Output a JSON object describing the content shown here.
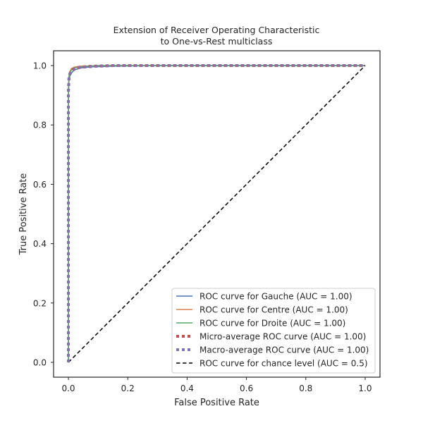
{
  "chart_data": {
    "type": "line",
    "title": "Extension of Receiver Operating Characteristic\nto One-vs-Rest multiclass",
    "xlabel": "False Positive Rate",
    "ylabel": "True Positive Rate",
    "xlim": [
      -0.05,
      1.05
    ],
    "ylim": [
      -0.05,
      1.05
    ],
    "xticks": [
      0.0,
      0.2,
      0.4,
      0.6,
      0.8,
      1.0
    ],
    "yticks": [
      0.0,
      0.2,
      0.4,
      0.6,
      0.8,
      1.0
    ],
    "xtick_labels": [
      "0.0",
      "0.2",
      "0.4",
      "0.6",
      "0.8",
      "1.0"
    ],
    "ytick_labels": [
      "0.0",
      "0.2",
      "0.4",
      "0.6",
      "0.8",
      "1.0"
    ],
    "grid": false,
    "legend_position": "lower-right",
    "series": [
      {
        "name": "ROC curve for Gauche (AUC = 1.00)",
        "color": "#4c72b0",
        "style": "solid",
        "x": [
          0.0,
          0.0,
          0.002,
          0.005,
          0.01,
          0.02,
          0.04,
          0.08,
          0.15,
          0.3,
          1.0
        ],
        "y": [
          0.0,
          0.9,
          0.95,
          0.965,
          0.975,
          0.985,
          0.992,
          0.996,
          0.998,
          1.0,
          1.0
        ]
      },
      {
        "name": "ROC curve for Centre (AUC = 1.00)",
        "color": "#dd8452",
        "style": "solid",
        "x": [
          0.0,
          0.0,
          0.002,
          0.005,
          0.01,
          0.02,
          0.04,
          0.08,
          0.15,
          1.0
        ],
        "y": [
          0.0,
          0.93,
          0.97,
          0.98,
          0.99,
          0.995,
          0.998,
          0.999,
          1.0,
          1.0
        ]
      },
      {
        "name": "ROC curve for Droite (AUC = 1.00)",
        "color": "#55a868",
        "style": "solid",
        "x": [
          0.0,
          0.0,
          0.002,
          0.005,
          0.01,
          0.02,
          0.05,
          0.1,
          1.0
        ],
        "y": [
          0.0,
          0.92,
          0.96,
          0.975,
          0.985,
          0.992,
          0.997,
          1.0,
          1.0
        ]
      },
      {
        "name": "Micro-average ROC curve (AUC = 1.00)",
        "color": "#c44e52",
        "style": "dotted",
        "x": [
          0.0,
          0.0,
          0.002,
          0.005,
          0.01,
          0.02,
          0.04,
          0.08,
          0.15,
          1.0
        ],
        "y": [
          0.0,
          0.92,
          0.96,
          0.973,
          0.983,
          0.99,
          0.995,
          0.998,
          1.0,
          1.0
        ]
      },
      {
        "name": "Macro-average ROC curve (AUC = 1.00)",
        "color": "#8172b3",
        "style": "dotted",
        "x": [
          0.0,
          0.0,
          0.002,
          0.005,
          0.01,
          0.02,
          0.04,
          0.08,
          0.15,
          1.0
        ],
        "y": [
          0.0,
          0.91,
          0.955,
          0.97,
          0.98,
          0.988,
          0.994,
          0.997,
          1.0,
          1.0
        ]
      },
      {
        "name": "ROC curve for chance level (AUC = 0.5)",
        "color": "#000000",
        "style": "dashed",
        "x": [
          0.0,
          1.0
        ],
        "y": [
          0.0,
          1.0
        ]
      }
    ]
  }
}
